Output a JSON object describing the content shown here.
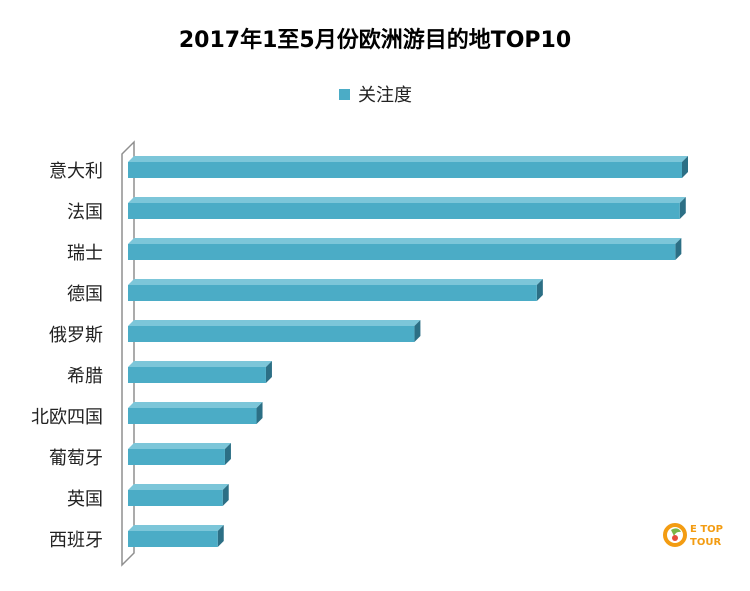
{
  "chart_data": {
    "type": "bar",
    "orientation": "horizontal",
    "title": "2017年1至5月份欧洲游目的地TOP10",
    "categories": [
      "意大利",
      "法国",
      "瑞士",
      "德国",
      "俄罗斯",
      "希腊",
      "北欧四国",
      "葡萄牙",
      "英国",
      "西班牙"
    ],
    "series": [
      {
        "name": "关注度",
        "values": [
          100,
          99.6,
          98.8,
          73.8,
          51.7,
          24.9,
          23.2,
          17.5,
          17.1,
          16.2
        ]
      }
    ],
    "xlim": [
      0,
      100
    ],
    "grid": false,
    "legend_position": "top",
    "colors": {
      "bar_front": "#4bacc6",
      "bar_top": "#7cc6d9",
      "bar_side": "#2c6f85",
      "wall": "#8f8f8f"
    }
  },
  "watermark": {
    "text_line1": "E TOP",
    "text_line2": "TOUR"
  }
}
